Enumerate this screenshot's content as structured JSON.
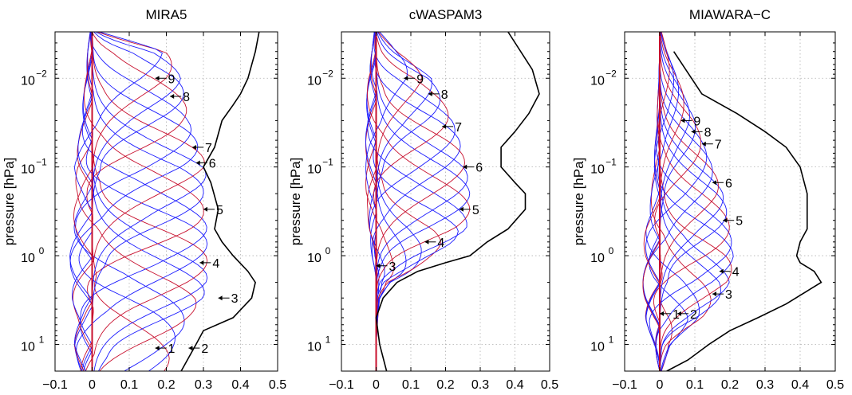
{
  "chart_data": [
    {
      "type": "line",
      "title": "MIRA5",
      "ylabel": "pressure [hPa]",
      "xlabel": "",
      "xlim": [
        -0.1,
        0.5
      ],
      "ylim": [
        20,
        0.003
      ],
      "yscale": "log",
      "ydir": "reverse",
      "grid": true,
      "x_ticks": [
        "−0.1",
        "0",
        "0.1",
        "0.2",
        "0.3",
        "0.4",
        "0.5"
      ],
      "y_ticks": [
        {
          "base": "10",
          "exp": "−2",
          "p": 0.01
        },
        {
          "base": "10",
          "exp": "−1",
          "p": 0.1
        },
        {
          "base": "10",
          "exp": "0",
          "p": 1
        },
        {
          "base": "10",
          "exp": "1",
          "p": 10
        }
      ],
      "black_profile": {
        "x": [
          0.24,
          0.28,
          0.3,
          0.38,
          0.43,
          0.44,
          0.42,
          0.38,
          0.35,
          0.33,
          0.34,
          0.32,
          0.3,
          0.33,
          0.35,
          0.38,
          0.4,
          0.42,
          0.44,
          0.45
        ],
        "p": [
          20,
          10,
          7,
          5,
          3,
          2,
          1.5,
          1,
          0.7,
          0.5,
          0.3,
          0.15,
          0.1,
          0.06,
          0.03,
          0.02,
          0.015,
          0.01,
          0.005,
          0.003
        ]
      },
      "kernel_envelope": {
        "p": [
          20,
          10,
          5,
          3,
          2,
          1,
          0.5,
          0.3,
          0.2,
          0.1,
          0.05,
          0.03,
          0.01,
          0.005,
          0.003
        ],
        "left": [
          -0.06,
          -0.08,
          -0.07,
          -0.09,
          -0.1,
          -0.1,
          -0.09,
          -0.08,
          -0.07,
          -0.08,
          -0.06,
          -0.05,
          -0.03,
          -0.02,
          -0.01
        ],
        "right": [
          0.2,
          0.22,
          0.26,
          0.3,
          0.31,
          0.31,
          0.31,
          0.3,
          0.3,
          0.31,
          0.28,
          0.26,
          0.24,
          0.2,
          0.02
        ]
      },
      "num_kernels": 20,
      "annotations": [
        {
          "label": "1",
          "x": 0.17,
          "p": 11
        },
        {
          "label": "2",
          "x": 0.26,
          "p": 11
        },
        {
          "label": "3",
          "x": 0.34,
          "p": 3
        },
        {
          "label": "4",
          "x": 0.29,
          "p": 1.2
        },
        {
          "label": "5",
          "x": 0.3,
          "p": 0.3
        },
        {
          "label": "6",
          "x": 0.28,
          "p": 0.09
        },
        {
          "label": "7",
          "x": 0.27,
          "p": 0.06
        },
        {
          "label": "8",
          "x": 0.21,
          "p": 0.016
        },
        {
          "label": "9",
          "x": 0.17,
          "p": 0.01
        }
      ]
    },
    {
      "type": "line",
      "title": "cWASPAM3",
      "ylabel": "pressure [hPa]",
      "xlabel": "",
      "xlim": [
        -0.1,
        0.5
      ],
      "ylim": [
        20,
        0.003
      ],
      "yscale": "log",
      "ydir": "reverse",
      "grid": true,
      "x_ticks": [
        "−0.1",
        "0",
        "0.1",
        "0.2",
        "0.3",
        "0.4",
        "0.5"
      ],
      "y_ticks": [
        {
          "base": "10",
          "exp": "−2",
          "p": 0.01
        },
        {
          "base": "10",
          "exp": "−1",
          "p": 0.1
        },
        {
          "base": "10",
          "exp": "0",
          "p": 1
        },
        {
          "base": "10",
          "exp": "1",
          "p": 10
        }
      ],
      "black_profile": {
        "x": [
          0.03,
          0.01,
          0.0,
          0.02,
          0.06,
          0.12,
          0.2,
          0.27,
          0.32,
          0.38,
          0.43,
          0.43,
          0.4,
          0.36,
          0.36,
          0.4,
          0.44,
          0.47,
          0.45,
          0.38
        ],
        "p": [
          20,
          10,
          5,
          3,
          2,
          1.5,
          1.2,
          1,
          0.7,
          0.5,
          0.3,
          0.2,
          0.15,
          0.1,
          0.06,
          0.04,
          0.025,
          0.015,
          0.008,
          0.003
        ]
      },
      "kernel_envelope": {
        "p": [
          20,
          10,
          5,
          3,
          2,
          1.5,
          1,
          0.7,
          0.5,
          0.3,
          0.2,
          0.1,
          0.05,
          0.03,
          0.01,
          0.005,
          0.003
        ],
        "left": [
          0,
          0,
          0,
          0,
          0,
          -0.005,
          -0.02,
          -0.03,
          -0.04,
          -0.04,
          -0.05,
          -0.05,
          -0.05,
          -0.05,
          -0.04,
          -0.02,
          -0.01
        ],
        "right": [
          0,
          0,
          0.005,
          0.01,
          0.04,
          0.1,
          0.16,
          0.22,
          0.26,
          0.27,
          0.27,
          0.26,
          0.24,
          0.22,
          0.16,
          0.06,
          0.01
        ]
      },
      "num_kernels": 20,
      "annotations": [
        {
          "label": "3",
          "x": 0.0,
          "p": 1.3
        },
        {
          "label": "4",
          "x": 0.14,
          "p": 0.7
        },
        {
          "label": "5",
          "x": 0.24,
          "p": 0.3
        },
        {
          "label": "6",
          "x": 0.25,
          "p": 0.1
        },
        {
          "label": "7",
          "x": 0.19,
          "p": 0.035
        },
        {
          "label": "8",
          "x": 0.15,
          "p": 0.015
        },
        {
          "label": "9",
          "x": 0.08,
          "p": 0.01
        }
      ]
    },
    {
      "type": "line",
      "title": "MIAWARA−C",
      "ylabel": "pressure [hPa]",
      "xlabel": "",
      "xlim": [
        -0.1,
        0.5
      ],
      "ylim": [
        20,
        0.003
      ],
      "yscale": "log",
      "ydir": "reverse",
      "grid": true,
      "x_ticks": [
        "−0.1",
        "0",
        "0.1",
        "0.2",
        "0.3",
        "0.4",
        "0.5"
      ],
      "y_ticks": [
        {
          "base": "10",
          "exp": "−2",
          "p": 0.01
        },
        {
          "base": "10",
          "exp": "−1",
          "p": 0.1
        },
        {
          "base": "10",
          "exp": "0",
          "p": 1
        },
        {
          "base": "10",
          "exp": "1",
          "p": 10
        }
      ],
      "black_profile": {
        "x": [
          0.02,
          0.08,
          0.14,
          0.2,
          0.28,
          0.36,
          0.42,
          0.46,
          0.44,
          0.4,
          0.39,
          0.4,
          0.42,
          0.42,
          0.4,
          0.36,
          0.3,
          0.22,
          0.12,
          0.04
        ],
        "p": [
          20,
          15,
          10,
          7,
          5,
          3.5,
          2.5,
          2,
          1.5,
          1.2,
          1,
          0.7,
          0.5,
          0.2,
          0.1,
          0.06,
          0.04,
          0.025,
          0.015,
          0.005
        ]
      },
      "kernel_envelope": {
        "p": [
          20,
          10,
          7,
          5,
          3,
          2,
          1,
          0.5,
          0.3,
          0.2,
          0.1,
          0.05,
          0.03,
          0.02,
          0.01,
          0.005,
          0.003
        ],
        "left": [
          0,
          -0.03,
          -0.05,
          -0.07,
          -0.08,
          -0.08,
          -0.08,
          -0.07,
          -0.05,
          -0.04,
          -0.03,
          -0.02,
          -0.015,
          -0.01,
          -0.005,
          0,
          0
        ],
        "right": [
          0.005,
          0.03,
          0.07,
          0.12,
          0.17,
          0.2,
          0.21,
          0.2,
          0.19,
          0.18,
          0.15,
          0.12,
          0.1,
          0.08,
          0.05,
          0.02,
          0.005
        ]
      },
      "num_kernels": 22,
      "annotations": [
        {
          "label": "1",
          "x": 0.0,
          "p": 4.5
        },
        {
          "label": "2",
          "x": 0.05,
          "p": 4.5
        },
        {
          "label": "3",
          "x": 0.15,
          "p": 2.7
        },
        {
          "label": "4",
          "x": 0.17,
          "p": 1.5
        },
        {
          "label": "5",
          "x": 0.18,
          "p": 0.4
        },
        {
          "label": "6",
          "x": 0.15,
          "p": 0.15
        },
        {
          "label": "7",
          "x": 0.12,
          "p": 0.055
        },
        {
          "label": "8",
          "x": 0.09,
          "p": 0.04
        },
        {
          "label": "9",
          "x": 0.06,
          "p": 0.03
        }
      ]
    }
  ]
}
